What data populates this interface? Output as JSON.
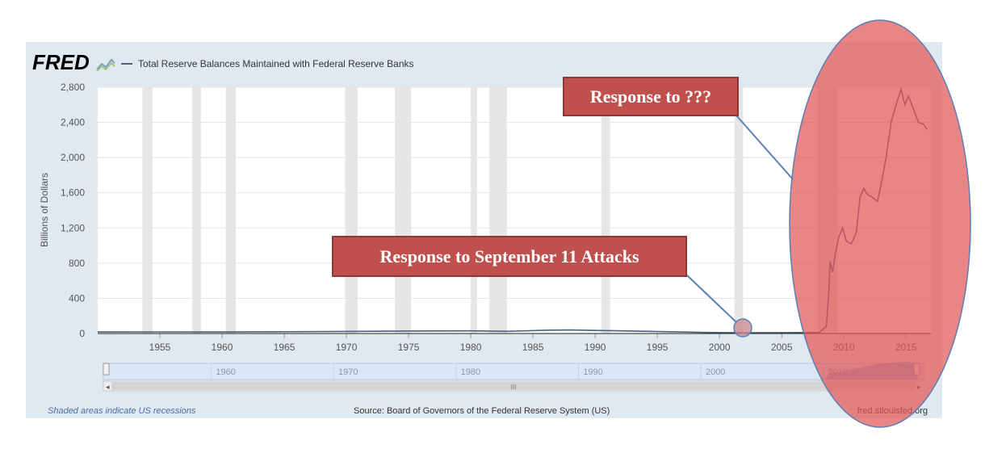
{
  "header": {
    "logo_text": "FRED",
    "series_title": "Total Reserve Balances Maintained with Federal Reserve Banks"
  },
  "footer": {
    "recession_note": "Shaded areas indicate US recessions",
    "source": "Source: Board of Governors of the Federal Reserve System (US)",
    "site": "fred.stlouisfed.org"
  },
  "navigator": {
    "labels": [
      "1960",
      "1970",
      "1980",
      "1990",
      "2000",
      "2010"
    ],
    "scroll_thumb_label": "III"
  },
  "callouts": {
    "mystery": "Response to ???",
    "sept11": "Response to September 11 Attacks"
  },
  "colors": {
    "line": "#4b5f80",
    "recession": "#e6e6e6",
    "highlight": "#e05656",
    "callout": "#c0504d"
  },
  "chart_data": {
    "type": "line",
    "title": "Total Reserve Balances Maintained with Federal Reserve Banks",
    "xlabel": "",
    "ylabel": "Billions of Dollars",
    "xlim": [
      1950,
      2017
    ],
    "ylim": [
      0,
      2800
    ],
    "xticks": [
      1955,
      1960,
      1965,
      1970,
      1975,
      1980,
      1985,
      1990,
      1995,
      2000,
      2005,
      2010,
      2015
    ],
    "yticks": [
      0,
      400,
      800,
      1200,
      1600,
      2000,
      2400,
      2800
    ],
    "ytick_labels": [
      "0",
      "400",
      "800",
      "1,200",
      "1,600",
      "2,000",
      "2,400",
      "2,800"
    ],
    "grid": true,
    "recessions": [
      [
        1953.6,
        1954.4
      ],
      [
        1957.6,
        1958.3
      ],
      [
        1960.3,
        1961.1
      ],
      [
        1969.9,
        1970.9
      ],
      [
        1973.9,
        1975.2
      ],
      [
        1980.0,
        1980.5
      ],
      [
        1981.5,
        1982.9
      ],
      [
        1990.5,
        1991.2
      ],
      [
        2001.2,
        2001.9
      ],
      [
        2007.9,
        2009.5
      ]
    ],
    "series": [
      {
        "values": [
          [
            1950,
            17
          ],
          [
            1955,
            18
          ],
          [
            1960,
            17
          ],
          [
            1965,
            20
          ],
          [
            1970,
            24
          ],
          [
            1975,
            28
          ],
          [
            1980,
            30
          ],
          [
            1983,
            25
          ],
          [
            1986,
            38
          ],
          [
            1988,
            40
          ],
          [
            1990,
            35
          ],
          [
            1993,
            28
          ],
          [
            1996,
            20
          ],
          [
            1999,
            12
          ],
          [
            2001,
            10
          ],
          [
            2001.7,
            12
          ],
          [
            2002,
            9
          ],
          [
            2005,
            10
          ],
          [
            2008.0,
            12
          ],
          [
            2008.6,
            80
          ],
          [
            2008.8,
            500
          ],
          [
            2008.9,
            820
          ],
          [
            2009.1,
            700
          ],
          [
            2009.3,
            900
          ],
          [
            2009.6,
            1100
          ],
          [
            2009.9,
            1200
          ],
          [
            2010.2,
            1050
          ],
          [
            2010.6,
            1020
          ],
          [
            2011.0,
            1150
          ],
          [
            2011.3,
            1550
          ],
          [
            2011.6,
            1650
          ],
          [
            2011.9,
            1580
          ],
          [
            2012.3,
            1550
          ],
          [
            2012.7,
            1500
          ],
          [
            2013.0,
            1700
          ],
          [
            2013.4,
            2000
          ],
          [
            2013.8,
            2400
          ],
          [
            2014.2,
            2600
          ],
          [
            2014.6,
            2780
          ],
          [
            2014.9,
            2600
          ],
          [
            2015.2,
            2700
          ],
          [
            2015.6,
            2550
          ],
          [
            2016.0,
            2400
          ],
          [
            2016.4,
            2380
          ],
          [
            2016.7,
            2320
          ]
        ]
      }
    ],
    "annotations": [
      "Response to ???",
      "Response to September 11 Attacks"
    ]
  }
}
